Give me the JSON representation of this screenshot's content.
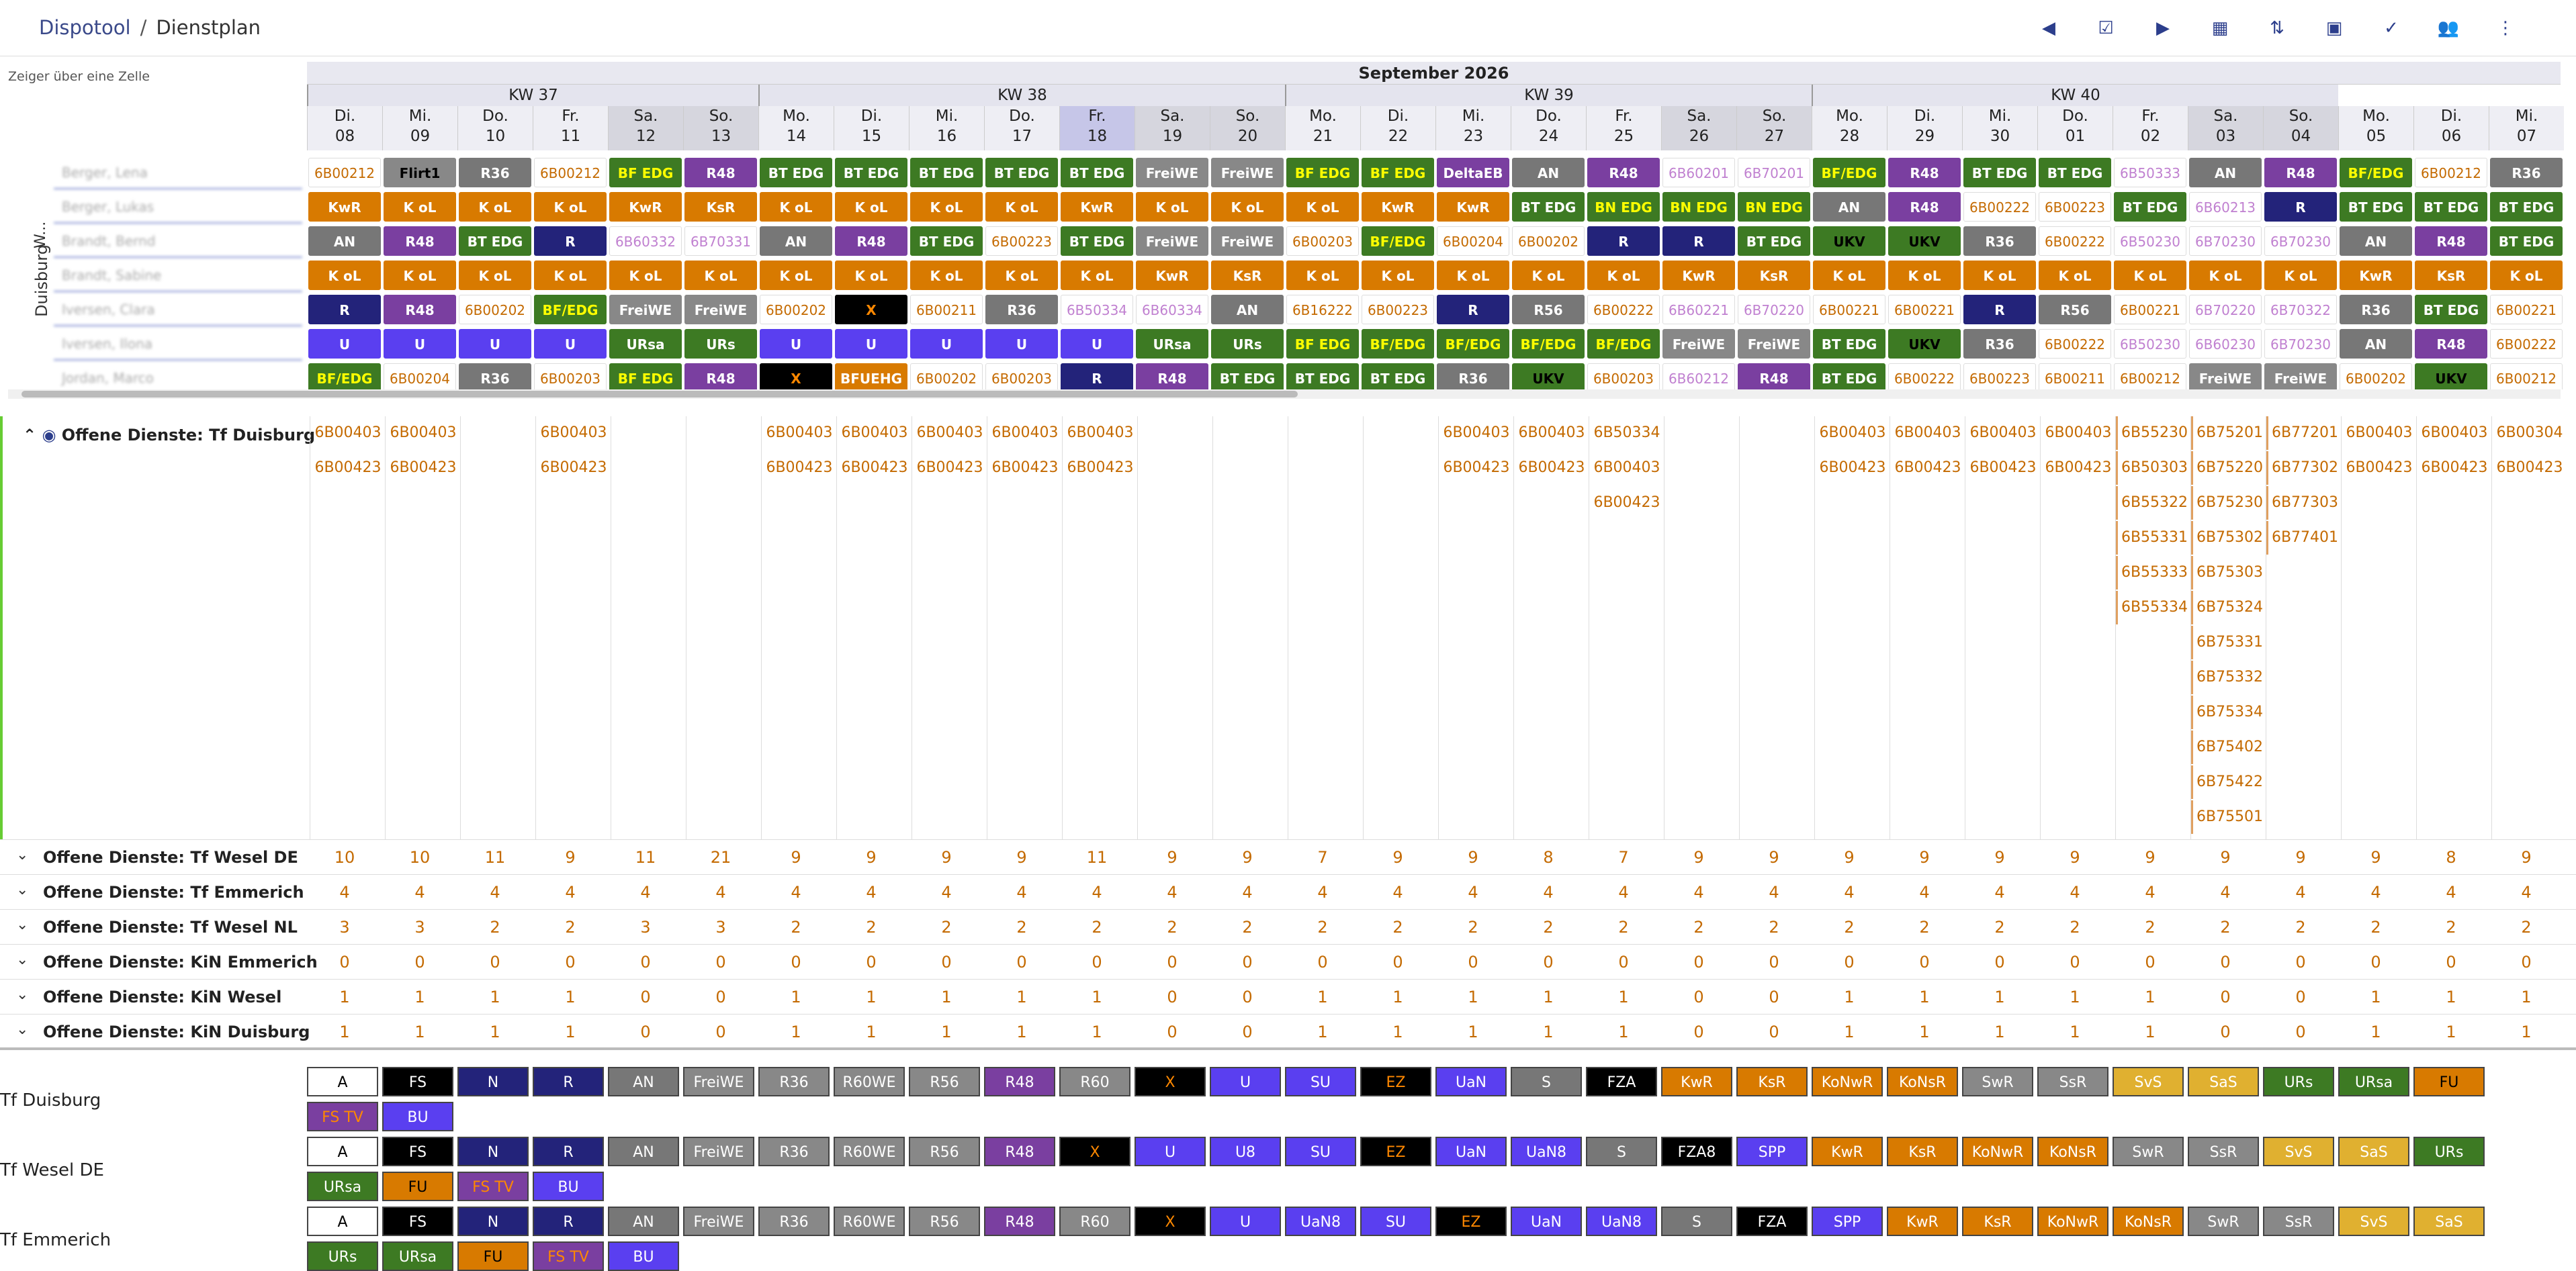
{
  "breadcrumb": {
    "app": "Dispotool",
    "sep": "/",
    "page": "Dienstplan"
  },
  "toolbar": [
    {
      "name": "prev-week-button",
      "glyph": "◀"
    },
    {
      "name": "today-button",
      "glyph": "☑"
    },
    {
      "name": "next-week-button",
      "glyph": "▶"
    },
    {
      "name": "calendar-button",
      "glyph": "▦"
    },
    {
      "name": "sort-button",
      "glyph": "⇅"
    },
    {
      "name": "layout-button",
      "glyph": "▣"
    },
    {
      "name": "check-button",
      "glyph": "✓"
    },
    {
      "name": "groups-button",
      "glyph": "👥"
    },
    {
      "name": "more-button",
      "glyph": "⋮"
    }
  ],
  "hint": "Zeiger über eine Zelle",
  "month": "September 2026",
  "weeks": [
    {
      "label": "KW 37",
      "from": 0,
      "span": 6
    },
    {
      "label": "KW 38",
      "from": 6,
      "span": 7
    },
    {
      "label": "KW 39",
      "from": 13,
      "span": 7
    },
    {
      "label": "KW 40",
      "from": 20,
      "span": 7
    }
  ],
  "days": [
    [
      "Di.",
      "08"
    ],
    [
      "Mi.",
      "09"
    ],
    [
      "Do.",
      "10"
    ],
    [
      "Fr.",
      "11"
    ],
    [
      "Sa.",
      "12"
    ],
    [
      "So.",
      "13"
    ],
    [
      "Mo.",
      "14"
    ],
    [
      "Di.",
      "15"
    ],
    [
      "Mi.",
      "16"
    ],
    [
      "Do.",
      "17"
    ],
    [
      "Fr.",
      "18"
    ],
    [
      "Sa.",
      "19"
    ],
    [
      "So.",
      "20"
    ],
    [
      "Mo.",
      "21"
    ],
    [
      "Di.",
      "22"
    ],
    [
      "Mi.",
      "23"
    ],
    [
      "Do.",
      "24"
    ],
    [
      "Fr.",
      "25"
    ],
    [
      "Sa.",
      "26"
    ],
    [
      "So.",
      "27"
    ],
    [
      "Mo.",
      "28"
    ],
    [
      "Di.",
      "29"
    ],
    [
      "Mi.",
      "30"
    ],
    [
      "Do.",
      "01"
    ],
    [
      "Fr.",
      "02"
    ],
    [
      "Sa.",
      "03"
    ],
    [
      "So.",
      "04"
    ],
    [
      "Mo.",
      "05"
    ],
    [
      "Di.",
      "06"
    ],
    [
      "Mi.",
      "07"
    ]
  ],
  "group_label": "Duisburg",
  "group_label_top": "W...",
  "employees": [
    "Berger, Lena",
    "Berger, Lukas",
    "Brandt, Bernd",
    "Brandt, Sabine",
    "Iversen, Clara",
    "Iversen, Ilona",
    "Jordan, Marco"
  ],
  "schedule": [
    [
      "6B00212",
      "Flirt1",
      "R36",
      "6B00212",
      "BF EDG",
      "R48",
      "BT EDG",
      "BT EDG",
      "BT EDG",
      "BT EDG",
      "BT EDG",
      "FreiWE",
      "FreiWE",
      "BF EDG",
      "BF EDG",
      "DeltaEB",
      "AN",
      "R48",
      "6B60201",
      "6B70201",
      "BF/EDG",
      "R48",
      "BT EDG",
      "BT EDG",
      "6B50333",
      "AN",
      "R48",
      "BF/EDG",
      "6B00212",
      "R36"
    ],
    [
      "KwR",
      "K oL",
      "K oL",
      "K oL",
      "KwR",
      "KsR",
      "K oL",
      "K oL",
      "K oL",
      "K oL",
      "KwR",
      "K oL",
      "K oL",
      "K oL",
      "KwR",
      "KwR",
      "BT EDG",
      "BN EDG",
      "BN EDG",
      "BN EDG",
      "AN",
      "R48",
      "6B00222",
      "6B00223",
      "BT EDG",
      "6B60213",
      "R",
      "BT EDG",
      "BT EDG",
      "BT EDG"
    ],
    [
      "AN",
      "R48",
      "BT EDG",
      "R",
      "6B60332",
      "6B70331",
      "AN",
      "R48",
      "BT EDG",
      "6B00223",
      "BT EDG",
      "FreiWE",
      "FreiWE",
      "6B00203",
      "BF/EDG",
      "6B00204",
      "6B00202",
      "R",
      "R",
      "BT EDG",
      "UKV",
      "UKV",
      "R36",
      "6B00222",
      "6B50230",
      "6B70230",
      "6B70230",
      "AN",
      "R48",
      "BT EDG"
    ],
    [
      "K oL",
      "K oL",
      "K oL",
      "K oL",
      "K oL",
      "K oL",
      "K oL",
      "K oL",
      "K oL",
      "K oL",
      "K oL",
      "KwR",
      "KsR",
      "K oL",
      "K oL",
      "K oL",
      "K oL",
      "K oL",
      "KwR",
      "KsR",
      "K oL",
      "K oL",
      "K oL",
      "K oL",
      "K oL",
      "K oL",
      "K oL",
      "KwR",
      "KsR",
      "K oL"
    ],
    [
      "R",
      "R48",
      "6B00202",
      "BF/EDG",
      "FreiWE",
      "FreiWE",
      "6B00202",
      "X",
      "6B00211",
      "R36",
      "6B50334",
      "6B60334",
      "AN",
      "6B16222",
      "6B00223",
      "R",
      "R56",
      "6B00222",
      "6B60221",
      "6B70220",
      "6B00221",
      "6B00221",
      "R",
      "R56",
      "6B00221",
      "6B70220",
      "6B70322",
      "R36",
      "BT EDG",
      "6B00221"
    ],
    [
      "U",
      "U",
      "U",
      "U",
      "URsa",
      "URs",
      "U",
      "U",
      "U",
      "U",
      "U",
      "URsa",
      "URs",
      "BF EDG",
      "BF/EDG",
      "BF/EDG",
      "BF/EDG",
      "BF/EDG",
      "FreiWE",
      "FreiWE",
      "BT EDG",
      "UKV",
      "R36",
      "6B00222",
      "6B50230",
      "6B60230",
      "6B70230",
      "AN",
      "R48",
      "6B00222"
    ],
    [
      "BF/EDG",
      "6B00204",
      "R36",
      "6B00203",
      "BF EDG",
      "R48",
      "X",
      "BFUEHG",
      "6B00202",
      "6B00203",
      "R",
      "R48",
      "BT EDG",
      "BT EDG",
      "BT EDG",
      "R36",
      "UKV",
      "6B00203",
      "6B60212",
      "R48",
      "BT EDG",
      "6B00222",
      "6B00223",
      "6B00211",
      "6B00212",
      "FreiWE",
      "FreiWE",
      "6B00202",
      "UKV",
      "6B00212"
    ]
  ],
  "open_main": {
    "title": "Offene Dienste: Tf Duisburg",
    "cols": [
      [
        "6B00403",
        "6B00423"
      ],
      [
        "6B00403",
        "6B00423"
      ],
      [],
      [
        "6B00403",
        "6B00423"
      ],
      [],
      [],
      [
        "6B00403",
        "6B00423"
      ],
      [
        "6B00403",
        "6B00423"
      ],
      [
        "6B00403",
        "6B00423"
      ],
      [
        "6B00403",
        "6B00423"
      ],
      [
        "6B00403",
        "6B00423"
      ],
      [],
      [],
      [],
      [],
      [
        "6B00403",
        "6B00423"
      ],
      [
        "6B00403",
        "6B00423"
      ],
      [
        "6B50334",
        "6B00403",
        "6B00423"
      ],
      [],
      [],
      [
        "6B00403",
        "6B00423"
      ],
      [
        "6B00403",
        "6B00423"
      ],
      [
        "6B00403",
        "6B00423"
      ],
      [
        "6B00403",
        "6B00423"
      ],
      [
        "6B55230",
        "6B50303",
        "6B55322",
        "6B55331",
        "6B55333",
        "6B55334"
      ],
      [
        "6B75201",
        "6B75220",
        "6B75230",
        "6B75302",
        "6B75303",
        "6B75324",
        "6B75331",
        "6B75332",
        "6B75334",
        "6B75402",
        "6B75422",
        "6B75501"
      ],
      [
        "6B77201",
        "6B77302",
        "6B77303",
        "6B77401"
      ],
      [
        "6B00403",
        "6B00423"
      ],
      [
        "6B00403",
        "6B00423"
      ],
      [
        "6B00304",
        "6B00423"
      ]
    ]
  },
  "open_rows": [
    {
      "title": "Offene Dienste: Tf Wesel DE",
      "values": [
        10,
        10,
        11,
        9,
        11,
        21,
        9,
        9,
        9,
        9,
        11,
        9,
        9,
        7,
        9,
        9,
        8,
        7,
        9,
        9,
        9,
        9,
        9,
        9,
        9,
        9,
        9,
        9,
        8,
        9
      ]
    },
    {
      "title": "Offene Dienste: Tf Emmerich",
      "values": [
        4,
        4,
        4,
        4,
        4,
        4,
        4,
        4,
        4,
        4,
        4,
        4,
        4,
        4,
        4,
        4,
        4,
        4,
        4,
        4,
        4,
        4,
        4,
        4,
        4,
        4,
        4,
        4,
        4,
        4
      ]
    },
    {
      "title": "Offene Dienste: Tf Wesel NL",
      "values": [
        3,
        3,
        2,
        2,
        3,
        3,
        2,
        2,
        2,
        2,
        2,
        2,
        2,
        2,
        2,
        2,
        2,
        2,
        2,
        2,
        2,
        2,
        2,
        2,
        2,
        2,
        2,
        2,
        2,
        2
      ]
    },
    {
      "title": "Offene Dienste: KiN Emmerich",
      "values": [
        0,
        0,
        0,
        0,
        0,
        0,
        0,
        0,
        0,
        0,
        0,
        0,
        0,
        0,
        0,
        0,
        0,
        0,
        0,
        0,
        0,
        0,
        0,
        0,
        0,
        0,
        0,
        0,
        0,
        0
      ]
    },
    {
      "title": "Offene Dienste: KiN Wesel",
      "values": [
        1,
        1,
        1,
        1,
        0,
        0,
        1,
        1,
        1,
        1,
        1,
        0,
        0,
        1,
        1,
        1,
        1,
        1,
        0,
        0,
        1,
        1,
        1,
        1,
        1,
        0,
        0,
        1,
        1,
        1
      ]
    },
    {
      "title": "Offene Dienste: KiN Duisburg",
      "values": [
        1,
        1,
        1,
        1,
        0,
        0,
        1,
        1,
        1,
        1,
        1,
        0,
        0,
        1,
        1,
        1,
        1,
        1,
        0,
        0,
        1,
        1,
        1,
        1,
        1,
        0,
        0,
        1,
        1,
        1
      ]
    }
  ],
  "legend": [
    {
      "name": "Tf Duisburg",
      "chips": [
        "A",
        "FS",
        "N",
        "R",
        "AN",
        "FreiWE",
        "R36",
        "R60WE",
        "R56",
        "R48",
        "R60",
        "X",
        "U",
        "SU",
        "EZ",
        "UaN",
        "S",
        "FZA",
        "KwR",
        "KsR",
        "KoNwR",
        "KoNsR",
        "SwR",
        "SsR",
        "SvS",
        "SaS",
        "URs",
        "URsa",
        "FU",
        "FS TV",
        "BU"
      ]
    },
    {
      "name": "Tf Wesel DE",
      "chips": [
        "A",
        "FS",
        "N",
        "R",
        "AN",
        "FreiWE",
        "R36",
        "R60WE",
        "R56",
        "R48",
        "X",
        "U",
        "U8",
        "SU",
        "EZ",
        "UaN",
        "UaN8",
        "S",
        "FZA8",
        "SPP",
        "KwR",
        "KsR",
        "KoNwR",
        "KoNsR",
        "SwR",
        "SsR",
        "SvS",
        "SaS",
        "URs",
        "URsa",
        "FU",
        "FS TV",
        "BU"
      ]
    },
    {
      "name": "Tf Emmerich",
      "chips": [
        "A",
        "FS",
        "N",
        "R",
        "AN",
        "FreiWE",
        "R36",
        "R60WE",
        "R56",
        "R48",
        "R60",
        "X",
        "U",
        "UaN8",
        "SU",
        "EZ",
        "UaN",
        "UaN8",
        "S",
        "FZA",
        "SPP",
        "KwR",
        "KsR",
        "KoNwR",
        "KoNsR",
        "SwR",
        "SsR",
        "SvS",
        "SaS",
        "URs",
        "URsa",
        "FU",
        "FS TV",
        "BU"
      ]
    }
  ],
  "colors": {
    "code_text": "#c46a00",
    "accent": "#2c3e8c"
  }
}
